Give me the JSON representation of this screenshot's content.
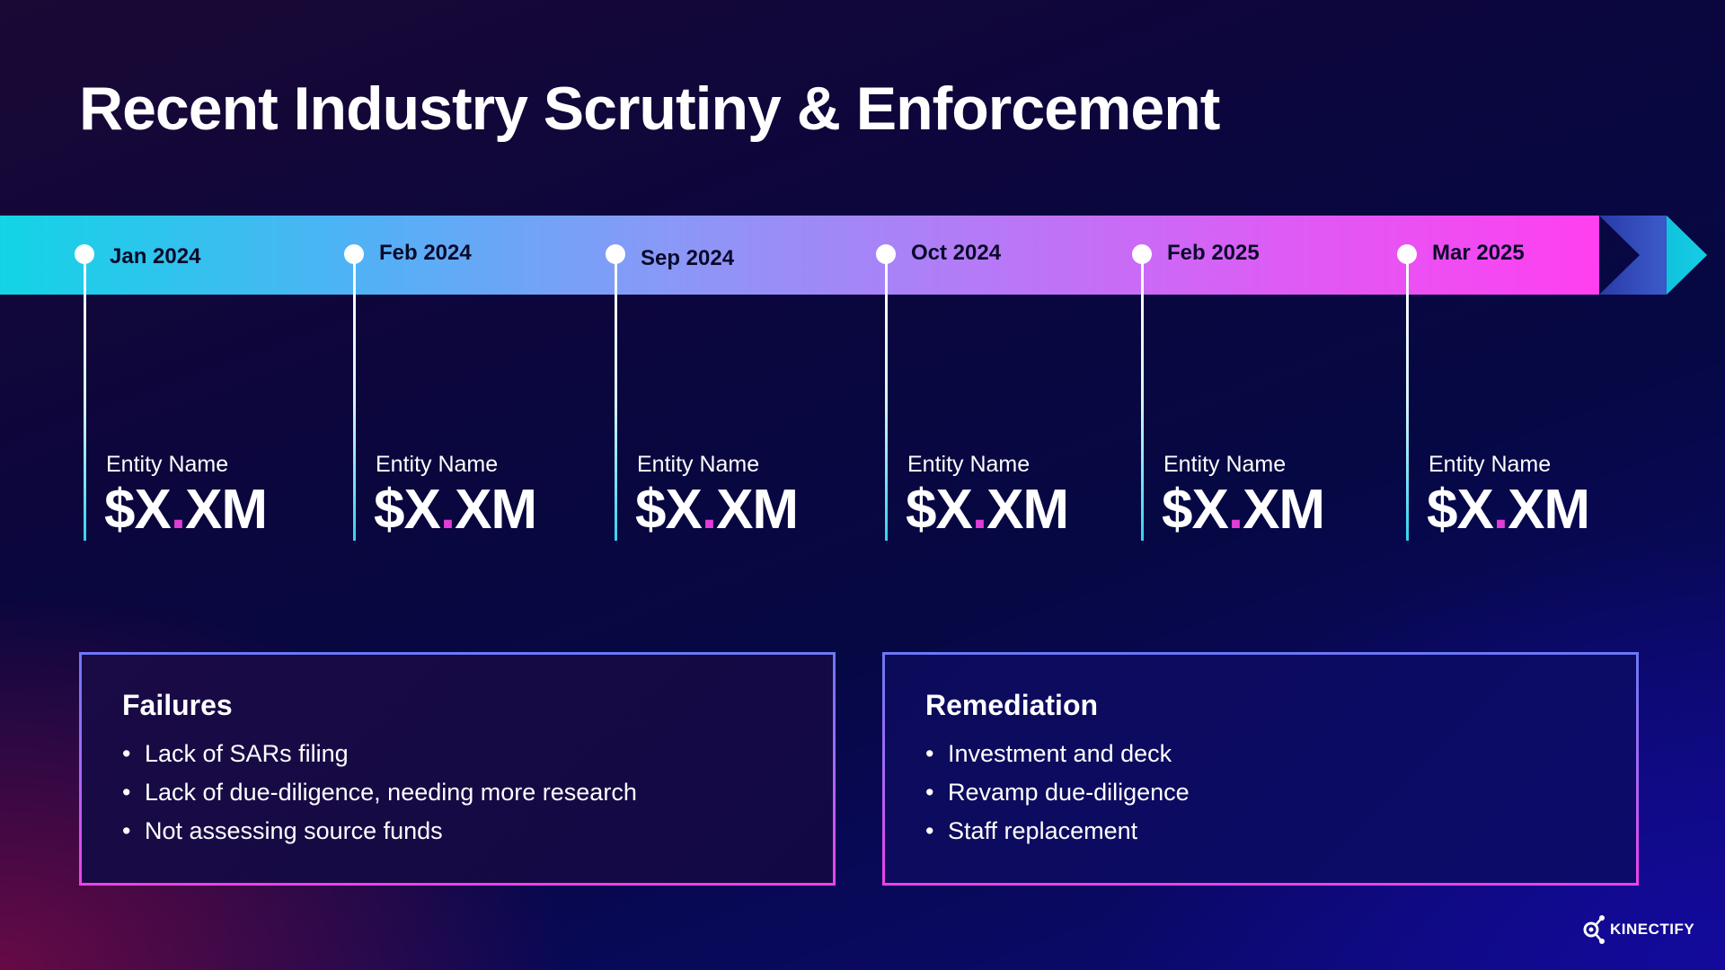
{
  "slide": {
    "title": "Recent Industry Scrutiny & Enforcement"
  },
  "timeline": [
    {
      "date": "Jan 2024",
      "entity": "Entity Name",
      "amount_prefix": "$X",
      "amount_sep": ".",
      "amount_suffix": "XM"
    },
    {
      "date": "Feb 2024",
      "entity": "Entity Name",
      "amount_prefix": "$X",
      "amount_sep": ".",
      "amount_suffix": "XM"
    },
    {
      "date": "Sep 2024",
      "entity": "Entity Name",
      "amount_prefix": "$X",
      "amount_sep": ".",
      "amount_suffix": "XM"
    },
    {
      "date": "Oct 2024",
      "entity": "Entity Name",
      "amount_prefix": "$X",
      "amount_sep": ".",
      "amount_suffix": "XM"
    },
    {
      "date": "Feb 2025",
      "entity": "Entity Name",
      "amount_prefix": "$X",
      "amount_sep": ".",
      "amount_suffix": "XM"
    },
    {
      "date": "Mar 2025",
      "entity": "Entity Name",
      "amount_prefix": "$X",
      "amount_sep": ".",
      "amount_suffix": "XM"
    }
  ],
  "failures": {
    "heading": "Failures",
    "items": [
      "Lack of SARs filing",
      "Lack of due-diligence, needing more research",
      "Not assessing source funds"
    ]
  },
  "remediation": {
    "heading": "Remediation",
    "items": [
      "Investment and deck",
      "Revamp due-diligence",
      "Staff replacement"
    ]
  },
  "logo": {
    "text": "KINECTIFY",
    "icon": "kinectify-logo-icon"
  },
  "colors": {
    "accent_pink": "#e23cd8",
    "band_start": "#13d4e6",
    "band_end": "#ff3ff0"
  }
}
